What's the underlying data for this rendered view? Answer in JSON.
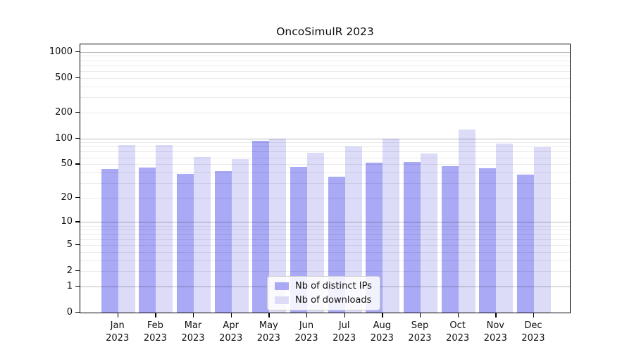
{
  "chart_data": {
    "type": "bar",
    "title": "OncoSimulR 2023",
    "categories": [
      "Jan 2023",
      "Feb 2023",
      "Mar 2023",
      "Apr 2023",
      "May 2023",
      "Jun 2023",
      "Jul 2023",
      "Aug 2023",
      "Sep 2023",
      "Oct 2023",
      "Nov 2023",
      "Dec 2023"
    ],
    "series": [
      {
        "name": "Nb of distinct IPs",
        "color": "#a9a9f6",
        "values": [
          42,
          44,
          37,
          40,
          90,
          45,
          34,
          50,
          51,
          46,
          43,
          36
        ]
      },
      {
        "name": "Nb of downloads",
        "color": "#dcdcf9",
        "values": [
          80,
          80,
          58,
          55,
          96,
          65,
          78,
          96,
          64,
          121,
          84,
          76
        ]
      }
    ],
    "yscale": "log1p",
    "yticks": [
      0,
      1,
      2,
      5,
      10,
      20,
      50,
      100,
      200,
      500,
      1000
    ],
    "ylim": [
      0,
      1400
    ],
    "grid": true,
    "legend_position": "bottom-center",
    "grid_major_color": "#b9b9b9",
    "grid_minor_color": "#ebebeb"
  }
}
